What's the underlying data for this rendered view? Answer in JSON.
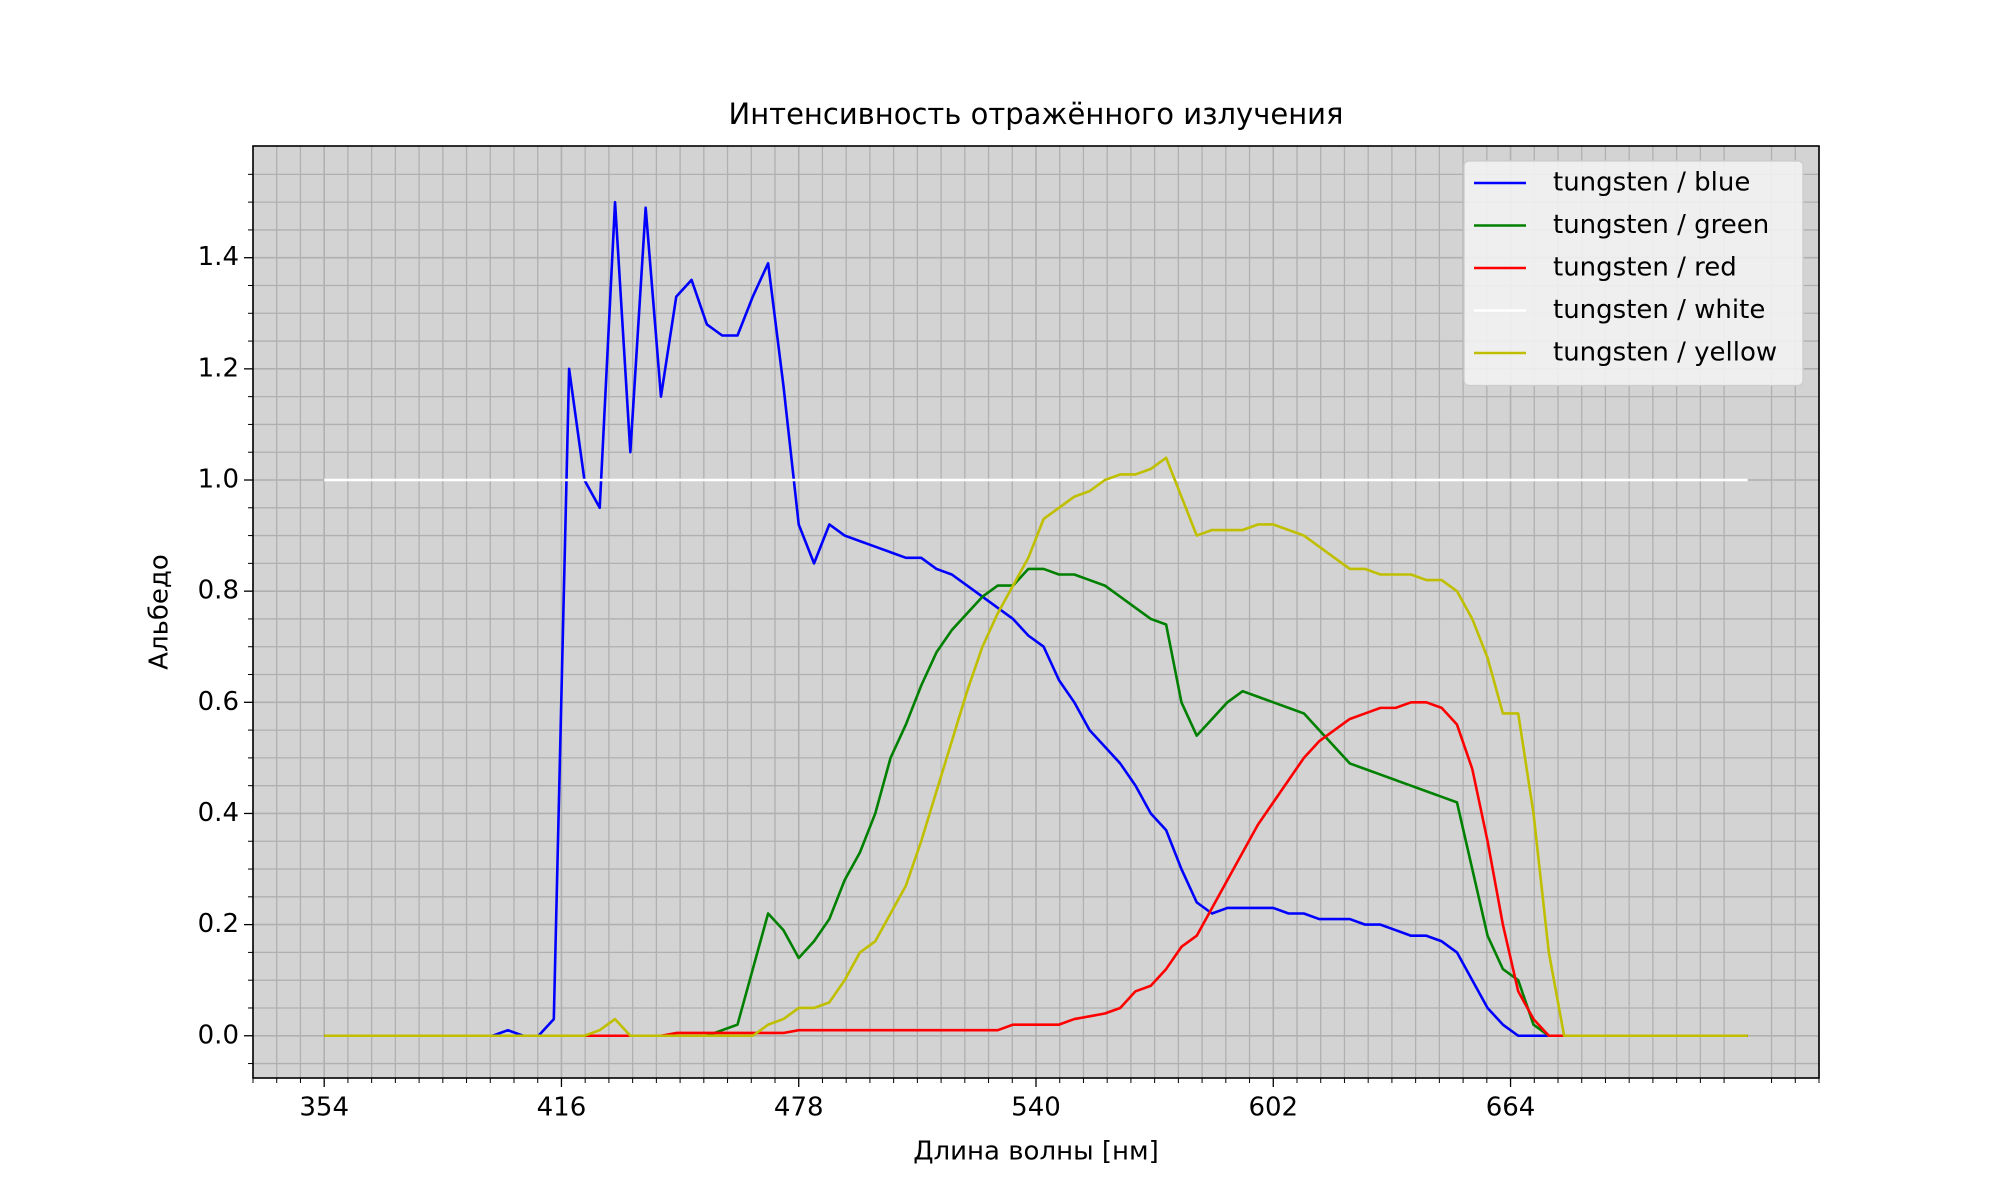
{
  "chart_data": {
    "type": "line",
    "title": "Интенсивность отражённого излучения",
    "x_label": "Длина волны [нм]",
    "y_label": "Альбедо",
    "x": [
      354,
      358,
      362,
      366,
      370,
      374,
      378,
      382,
      386,
      390,
      394,
      398,
      402,
      406,
      410,
      414,
      418,
      422,
      426,
      430,
      434,
      438,
      442,
      446,
      450,
      454,
      458,
      462,
      466,
      470,
      474,
      478,
      482,
      486,
      490,
      494,
      498,
      502,
      506,
      510,
      514,
      518,
      522,
      526,
      530,
      534,
      538,
      542,
      546,
      550,
      554,
      558,
      562,
      566,
      570,
      574,
      578,
      582,
      586,
      590,
      594,
      598,
      602,
      606,
      610,
      614,
      618,
      622,
      626,
      630,
      634,
      638,
      642,
      646,
      650,
      654,
      658,
      662,
      666,
      670,
      674,
      678,
      682,
      686,
      690,
      694,
      698,
      702,
      706,
      710,
      714,
      718,
      722,
      726
    ],
    "series": [
      {
        "name": "tungsten / blue",
        "color": "#0000ff",
        "values": [
          0,
          0,
          0,
          0,
          0,
          0,
          0,
          0,
          0,
          0,
          0,
          0,
          0.01,
          0,
          0,
          0.03,
          1.2,
          1.0,
          0.95,
          1.5,
          1.05,
          1.49,
          1.15,
          1.33,
          1.36,
          1.28,
          1.26,
          1.26,
          1.33,
          1.39,
          1.17,
          0.92,
          0.85,
          0.92,
          0.9,
          0.89,
          0.88,
          0.87,
          0.86,
          0.86,
          0.84,
          0.83,
          0.81,
          0.79,
          0.77,
          0.75,
          0.72,
          0.7,
          0.64,
          0.6,
          0.55,
          0.52,
          0.49,
          0.45,
          0.4,
          0.37,
          0.3,
          0.24,
          0.22,
          0.23,
          0.23,
          0.23,
          0.23,
          0.22,
          0.22,
          0.21,
          0.21,
          0.21,
          0.2,
          0.2,
          0.19,
          0.18,
          0.18,
          0.17,
          0.15,
          0.1,
          0.05,
          0.02,
          0,
          0,
          0,
          0,
          0,
          0,
          0,
          0,
          0,
          0,
          0,
          0,
          0,
          0,
          0,
          0
        ]
      },
      {
        "name": "tungsten / green",
        "color": "#008000",
        "values": [
          0,
          0,
          0,
          0,
          0,
          0,
          0,
          0,
          0,
          0,
          0,
          0,
          0,
          0,
          0,
          0,
          0,
          0,
          0,
          0,
          0,
          0,
          0,
          0,
          0,
          0,
          0.01,
          0.02,
          0.12,
          0.22,
          0.19,
          0.14,
          0.17,
          0.21,
          0.28,
          0.33,
          0.4,
          0.5,
          0.56,
          0.63,
          0.69,
          0.73,
          0.76,
          0.79,
          0.81,
          0.81,
          0.84,
          0.84,
          0.83,
          0.83,
          0.82,
          0.81,
          0.79,
          0.77,
          0.75,
          0.74,
          0.6,
          0.54,
          0.57,
          0.6,
          0.62,
          0.61,
          0.6,
          0.59,
          0.58,
          0.55,
          0.52,
          0.49,
          0.48,
          0.47,
          0.46,
          0.45,
          0.44,
          0.43,
          0.42,
          0.3,
          0.18,
          0.12,
          0.1,
          0.02,
          0,
          0,
          0,
          0,
          0,
          0,
          0,
          0,
          0,
          0,
          0,
          0,
          0,
          0
        ]
      },
      {
        "name": "tungsten / red",
        "color": "#ff0000",
        "values": [
          0,
          0,
          0,
          0,
          0,
          0,
          0,
          0,
          0,
          0,
          0,
          0,
          0,
          0,
          0,
          0,
          0,
          0,
          0,
          0,
          0,
          0,
          0,
          0.005,
          0.005,
          0.005,
          0.005,
          0.005,
          0.005,
          0.005,
          0.005,
          0.01,
          0.01,
          0.01,
          0.01,
          0.01,
          0.01,
          0.01,
          0.01,
          0.01,
          0.01,
          0.01,
          0.01,
          0.01,
          0.01,
          0.02,
          0.02,
          0.02,
          0.02,
          0.03,
          0.035,
          0.04,
          0.05,
          0.08,
          0.09,
          0.12,
          0.16,
          0.18,
          0.23,
          0.28,
          0.33,
          0.38,
          0.42,
          0.46,
          0.5,
          0.53,
          0.55,
          0.57,
          0.58,
          0.59,
          0.59,
          0.6,
          0.6,
          0.59,
          0.56,
          0.48,
          0.35,
          0.2,
          0.08,
          0.03,
          0,
          0,
          0,
          0,
          0,
          0,
          0,
          0,
          0,
          0,
          0,
          0,
          0,
          0
        ]
      },
      {
        "name": "tungsten / white",
        "color": "#ffffff",
        "values": [
          1,
          1,
          1,
          1,
          1,
          1,
          1,
          1,
          1,
          1,
          1,
          1,
          1,
          1,
          1,
          1,
          1,
          1,
          1,
          1,
          1,
          1,
          1,
          1,
          1,
          1,
          1,
          1,
          1,
          1,
          1,
          1,
          1,
          1,
          1,
          1,
          1,
          1,
          1,
          1,
          1,
          1,
          1,
          1,
          1,
          1,
          1,
          1,
          1,
          1,
          1,
          1,
          1,
          1,
          1,
          1,
          1,
          1,
          1,
          1,
          1,
          1,
          1,
          1,
          1,
          1,
          1,
          1,
          1,
          1,
          1,
          1,
          1,
          1,
          1,
          1,
          1,
          1,
          1,
          1,
          1,
          1,
          1,
          1,
          1,
          1,
          1,
          1,
          1,
          1,
          1,
          1,
          1,
          1
        ]
      },
      {
        "name": "tungsten / yellow",
        "color": "#bfbf00",
        "values": [
          0,
          0,
          0,
          0,
          0,
          0,
          0,
          0,
          0,
          0,
          0,
          0,
          0,
          0,
          0,
          0,
          0,
          0,
          0.01,
          0.03,
          0,
          0,
          0,
          0,
          0,
          0,
          0,
          0,
          0,
          0.02,
          0.03,
          0.05,
          0.05,
          0.06,
          0.1,
          0.15,
          0.17,
          0.22,
          0.27,
          0.35,
          0.44,
          0.53,
          0.62,
          0.7,
          0.76,
          0.81,
          0.86,
          0.93,
          0.95,
          0.97,
          0.98,
          1.0,
          1.01,
          1.01,
          1.02,
          1.04,
          0.97,
          0.9,
          0.91,
          0.91,
          0.91,
          0.92,
          0.92,
          0.91,
          0.9,
          0.88,
          0.86,
          0.84,
          0.84,
          0.83,
          0.83,
          0.83,
          0.82,
          0.82,
          0.8,
          0.75,
          0.68,
          0.58,
          0.58,
          0.4,
          0.15,
          0,
          0,
          0,
          0,
          0,
          0,
          0,
          0,
          0,
          0,
          0,
          0,
          0
        ]
      }
    ],
    "xlim": [
      335.4,
      744.6
    ],
    "ylim": [
      -0.076,
      1.601
    ],
    "xticks": [
      354,
      416,
      478,
      540,
      602,
      664
    ],
    "yticks": [
      {
        "value": 0,
        "label": "0.0"
      },
      0.2,
      0.4,
      0.6,
      0.8,
      {
        "value": 1,
        "label": "1.0"
      },
      1.2,
      1.4
    ],
    "grid": true,
    "minor_divisions_x": 10,
    "minor_divisions_y": 4,
    "axes_background": "#d3d3d3",
    "grid_color": "#b0b0b0",
    "legend_position": "upper-right"
  }
}
